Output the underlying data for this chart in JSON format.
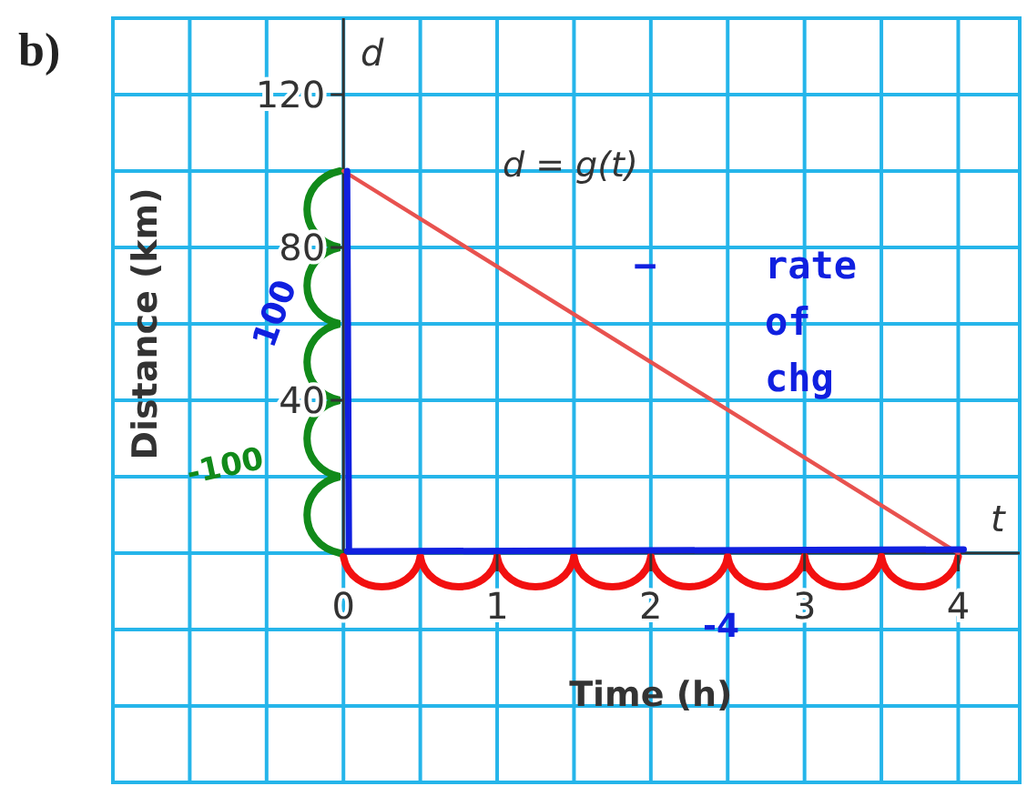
{
  "chart_data": {
    "type": "line",
    "xlabel": "Time (h)",
    "ylabel": "Distance (km)",
    "x": [
      0,
      4
    ],
    "series": [
      {
        "color": "#e8524f",
        "values": [
          100,
          0
        ]
      }
    ],
    "xlim": [
      -1.5,
      4.4
    ],
    "ylim": [
      -60,
      140
    ],
    "xticks": [
      {
        "value": -1,
        "label": null
      },
      {
        "value": -0.5,
        "label": null
      },
      {
        "value": 0,
        "label": "0"
      },
      {
        "value": 0.5,
        "label": null
      },
      1,
      {
        "value": 1.5,
        "label": null
      },
      2,
      {
        "value": 2.5,
        "label": null
      },
      3,
      {
        "value": 3.5,
        "label": null
      },
      4
    ],
    "yticks": [
      {
        "value": -40,
        "label": null
      },
      {
        "value": -20,
        "label": null
      },
      {
        "value": 0,
        "label": null
      },
      {
        "value": 20,
        "label": null
      },
      40,
      {
        "value": 60,
        "label": null
      },
      80,
      {
        "value": 100,
        "label": null
      },
      120
    ],
    "grid": true,
    "marker": "none",
    "line_style": "solid",
    "annotations": [
      "b)",
      "d",
      "t",
      "d = g(t)",
      "− rate of chg",
      "100",
      "-100",
      "-4"
    ]
  }
}
